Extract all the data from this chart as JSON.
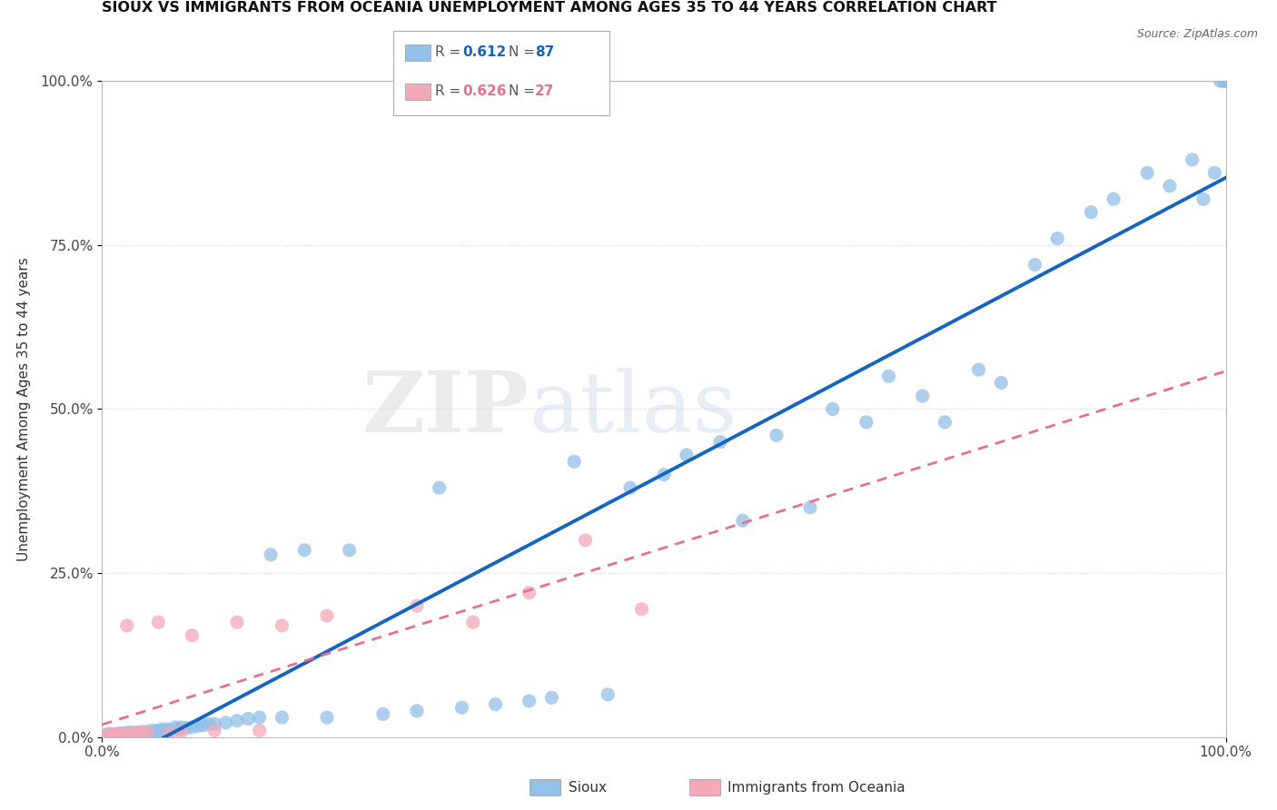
{
  "title": "SIOUX VS IMMIGRANTS FROM OCEANIA UNEMPLOYMENT AMONG AGES 35 TO 44 YEARS CORRELATION CHART",
  "source": "Source: ZipAtlas.com",
  "ylabel": "Unemployment Among Ages 35 to 44 years",
  "xlim": [
    0,
    1.0
  ],
  "ylim": [
    0,
    1.0
  ],
  "watermark_zip": "ZIP",
  "watermark_atlas": "atlas",
  "legend_sioux_R": "0.612",
  "legend_sioux_N": "87",
  "legend_oceania_R": "0.626",
  "legend_oceania_N": "27",
  "sioux_color": "#92c0e8",
  "oceania_color": "#f4a8b8",
  "sioux_line_color": "#1565c0",
  "oceania_line_color": "#e57090",
  "background_color": "#ffffff",
  "sioux_x": [
    0.005,
    0.008,
    0.01,
    0.012,
    0.013,
    0.015,
    0.016,
    0.017,
    0.018,
    0.019,
    0.02,
    0.021,
    0.022,
    0.023,
    0.024,
    0.025,
    0.026,
    0.027,
    0.028,
    0.03,
    0.032,
    0.035,
    0.037,
    0.04,
    0.042,
    0.045,
    0.048,
    0.05,
    0.053,
    0.055,
    0.058,
    0.06,
    0.065,
    0.068,
    0.07,
    0.075,
    0.08,
    0.085,
    0.09,
    0.095,
    0.1,
    0.11,
    0.12,
    0.13,
    0.14,
    0.15,
    0.16,
    0.18,
    0.2,
    0.22,
    0.25,
    0.28,
    0.3,
    0.32,
    0.35,
    0.38,
    0.4,
    0.42,
    0.45,
    0.47,
    0.5,
    0.52,
    0.55,
    0.57,
    0.6,
    0.63,
    0.65,
    0.68,
    0.7,
    0.73,
    0.75,
    0.78,
    0.8,
    0.83,
    0.85,
    0.88,
    0.9,
    0.93,
    0.95,
    0.97,
    0.98,
    0.99,
    0.995,
    0.998,
    1.0,
    1.0,
    1.0
  ],
  "sioux_y": [
    0.005,
    0.003,
    0.004,
    0.005,
    0.003,
    0.005,
    0.004,
    0.006,
    0.003,
    0.005,
    0.006,
    0.004,
    0.005,
    0.007,
    0.003,
    0.006,
    0.004,
    0.007,
    0.005,
    0.006,
    0.007,
    0.008,
    0.006,
    0.008,
    0.007,
    0.01,
    0.009,
    0.01,
    0.012,
    0.01,
    0.012,
    0.01,
    0.015,
    0.012,
    0.015,
    0.014,
    0.015,
    0.017,
    0.018,
    0.02,
    0.02,
    0.022,
    0.025,
    0.028,
    0.03,
    0.278,
    0.03,
    0.285,
    0.03,
    0.285,
    0.035,
    0.04,
    0.38,
    0.045,
    0.05,
    0.055,
    0.06,
    0.42,
    0.065,
    0.38,
    0.4,
    0.43,
    0.45,
    0.33,
    0.46,
    0.35,
    0.5,
    0.48,
    0.55,
    0.52,
    0.48,
    0.56,
    0.54,
    0.72,
    0.76,
    0.8,
    0.82,
    0.86,
    0.84,
    0.88,
    0.82,
    0.86,
    1.0,
    1.0,
    1.0,
    1.0,
    1.0
  ],
  "oceania_x": [
    0.005,
    0.008,
    0.01,
    0.012,
    0.015,
    0.018,
    0.02,
    0.022,
    0.025,
    0.028,
    0.03,
    0.035,
    0.04,
    0.05,
    0.06,
    0.07,
    0.08,
    0.1,
    0.12,
    0.14,
    0.16,
    0.2,
    0.28,
    0.33,
    0.38,
    0.43,
    0.48
  ],
  "oceania_y": [
    0.003,
    0.005,
    0.003,
    0.004,
    0.005,
    0.003,
    0.005,
    0.17,
    0.005,
    0.004,
    0.006,
    0.007,
    0.008,
    0.175,
    0.005,
    0.008,
    0.155,
    0.01,
    0.175,
    0.01,
    0.17,
    0.185,
    0.2,
    0.175,
    0.22,
    0.3,
    0.195
  ]
}
